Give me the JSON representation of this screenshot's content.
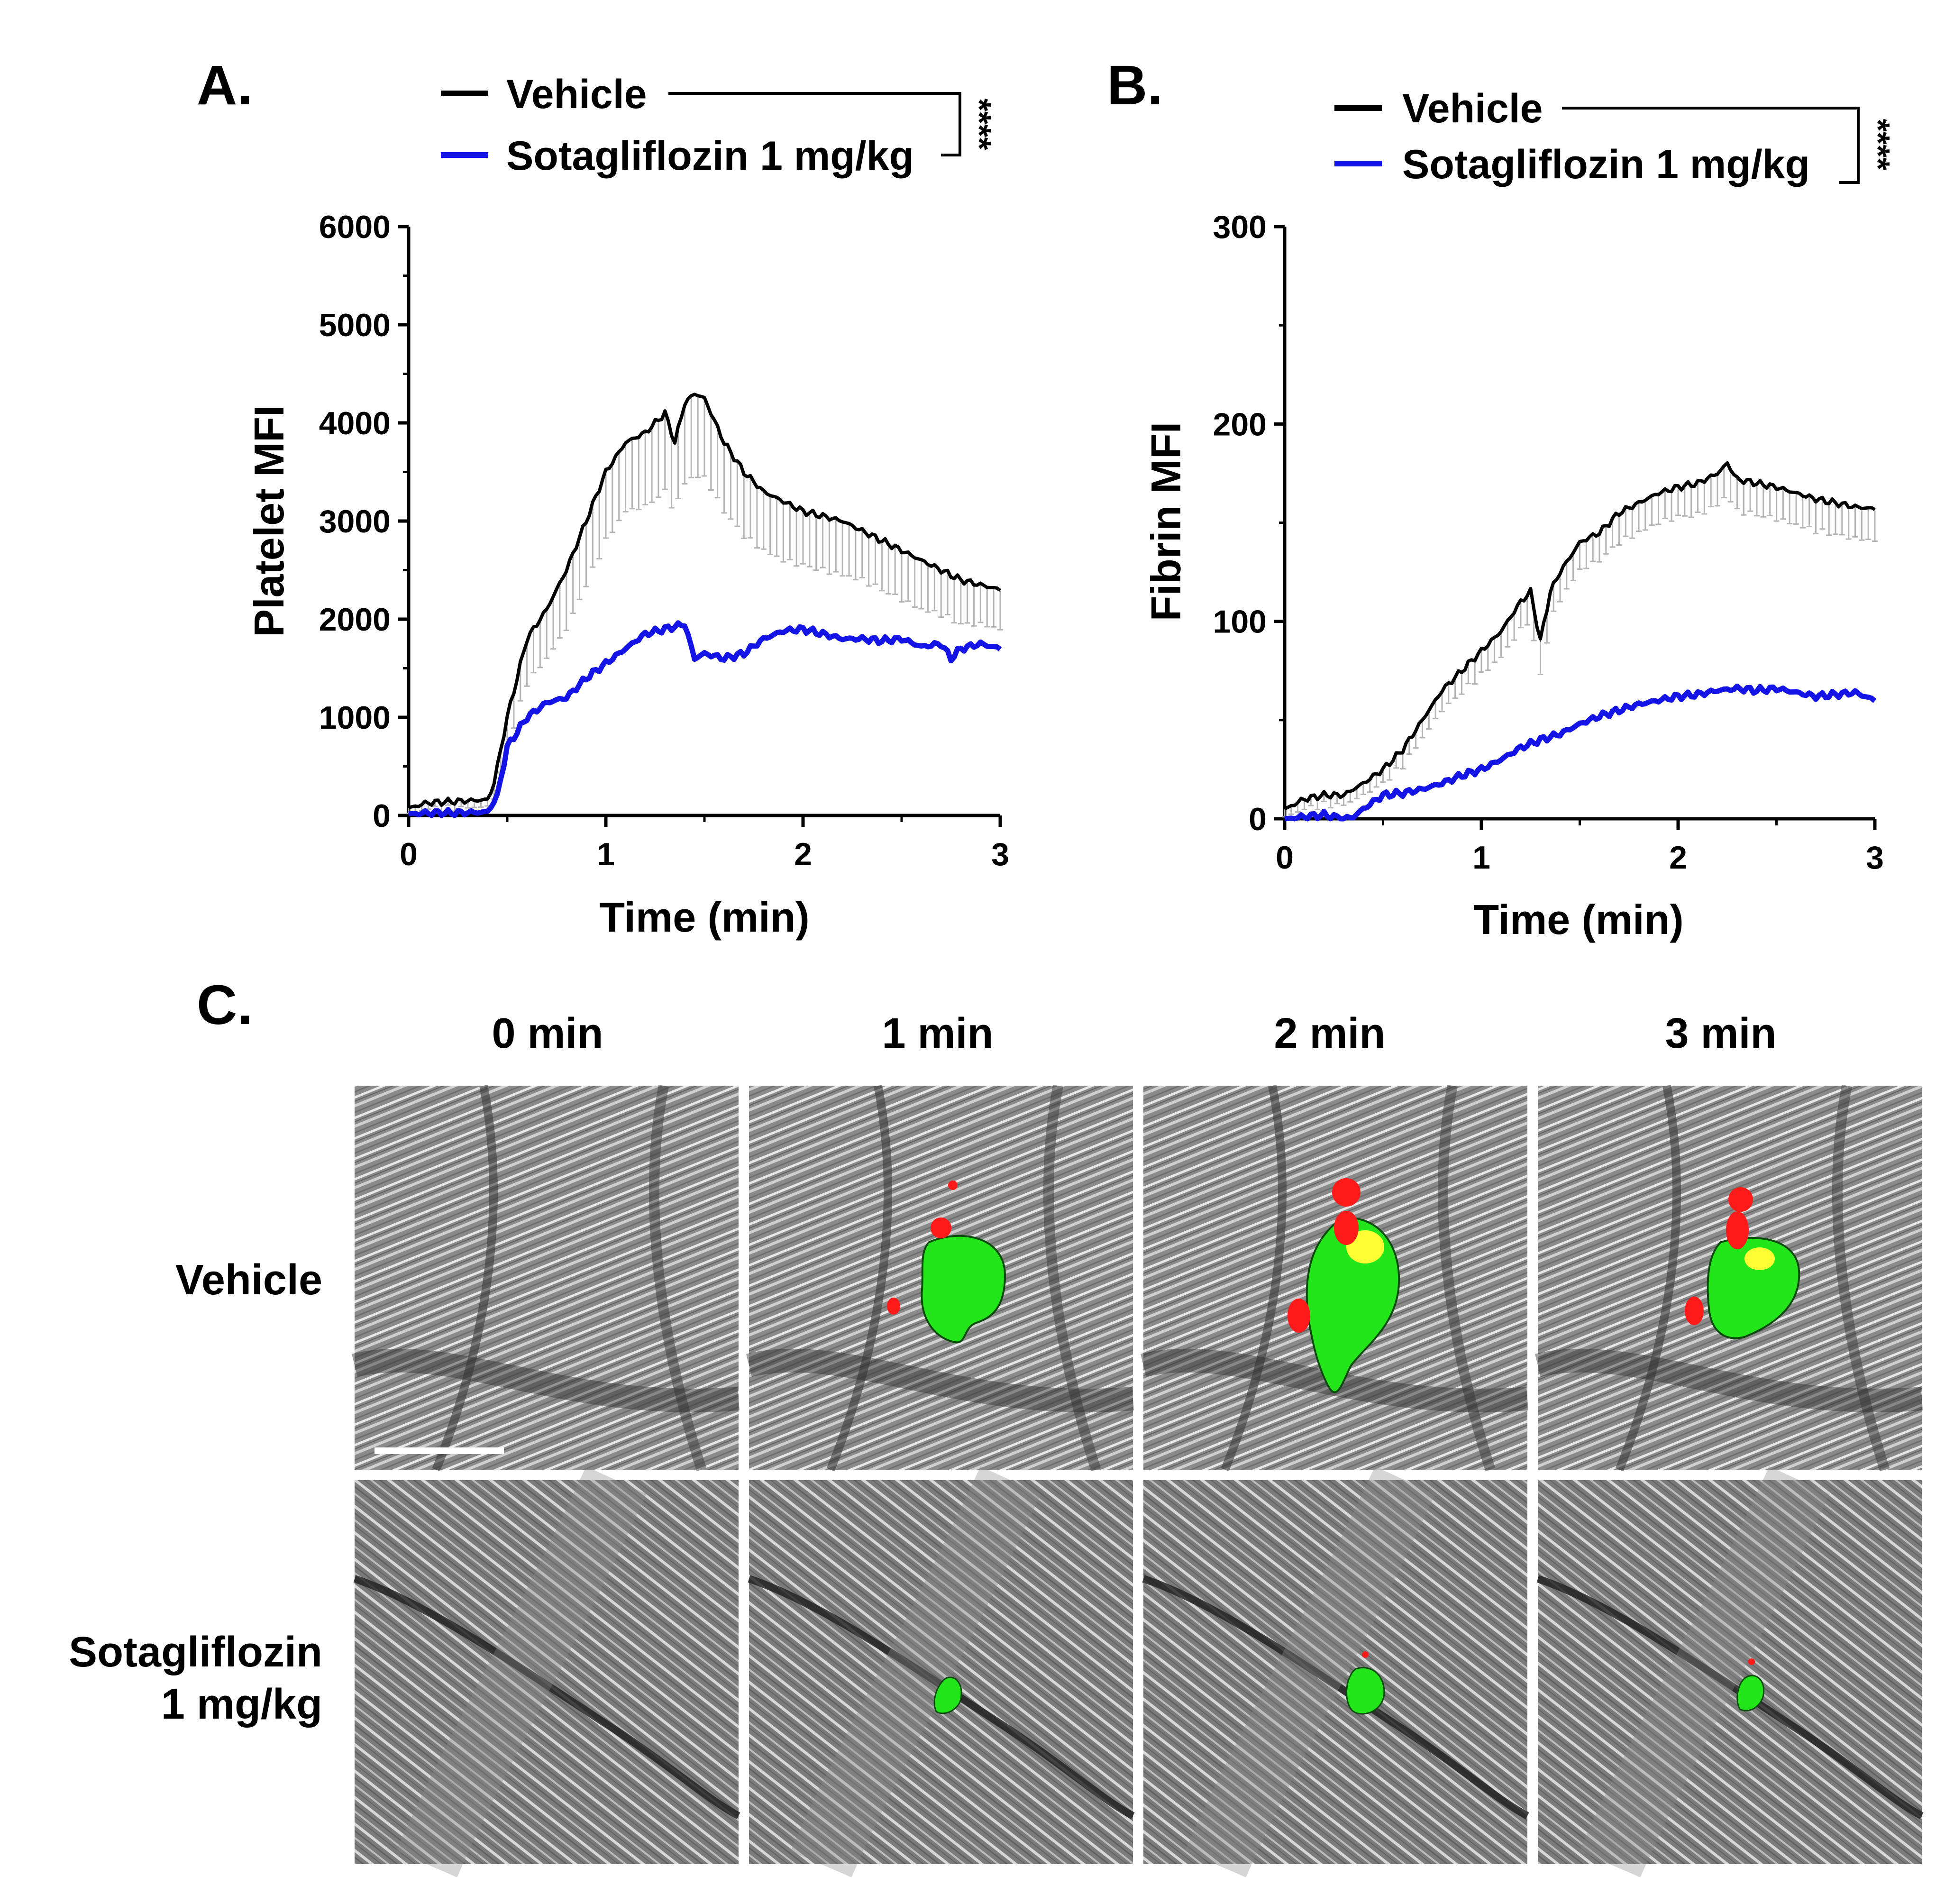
{
  "colors": {
    "vehicle": "#000000",
    "sotagliflozin": "#1414e6",
    "error_bar": "#b4b4b4",
    "platelet": "#ff1a1a",
    "fibrin": "#22e61a",
    "overlap": "#ffff33"
  },
  "panels": {
    "a": {
      "letter": "A.",
      "legend": [
        {
          "name": "Vehicle",
          "color": "#000000"
        },
        {
          "name": "Sotagliflozin 1 mg/kg",
          "color": "#1414e6"
        }
      ],
      "significance": "****"
    },
    "b": {
      "letter": "B.",
      "legend": [
        {
          "name": "Vehicle",
          "color": "#000000"
        },
        {
          "name": "Sotagliflozin 1 mg/kg",
          "color": "#1414e6"
        }
      ],
      "significance": "****"
    },
    "c": {
      "letter": "C.",
      "columns": [
        "0 min",
        "1 min",
        "2 min",
        "3 min"
      ],
      "rows": [
        {
          "label_lines": [
            "Vehicle"
          ]
        },
        {
          "label_lines": [
            "Sotagliflozin",
            "1 mg/kg"
          ]
        }
      ]
    }
  },
  "chart_data": [
    {
      "type": "line",
      "panel": "A",
      "title": "",
      "xlabel": "Time (min)",
      "ylabel": "Platelet MFI",
      "xlim": [
        0,
        3
      ],
      "ylim": [
        0,
        6000
      ],
      "xticks": [
        0,
        1,
        2,
        3
      ],
      "yticks": [
        0,
        1000,
        2000,
        3000,
        4000,
        5000,
        6000
      ],
      "series": [
        {
          "name": "Vehicle",
          "color": "#000000",
          "error_bars": "SEM (gray)",
          "x": [
            0,
            0.1,
            0.2,
            0.3,
            0.4,
            0.43,
            0.5,
            0.6,
            0.7,
            0.8,
            0.9,
            1.0,
            1.1,
            1.2,
            1.3,
            1.35,
            1.4,
            1.45,
            1.5,
            1.6,
            1.7,
            1.8,
            1.9,
            2.0,
            2.1,
            2.2,
            2.3,
            2.4,
            2.5,
            2.6,
            2.7,
            2.8,
            2.9,
            3.0
          ],
          "values": [
            80,
            130,
            140,
            150,
            160,
            300,
            1000,
            1800,
            2100,
            2500,
            3000,
            3500,
            3800,
            3900,
            4100,
            3800,
            4200,
            4300,
            4250,
            3800,
            3500,
            3300,
            3200,
            3100,
            3050,
            3000,
            2900,
            2800,
            2700,
            2600,
            2500,
            2400,
            2350,
            2300
          ],
          "errors": [
            60,
            60,
            70,
            70,
            70,
            150,
            300,
            450,
            500,
            600,
            650,
            700,
            700,
            750,
            800,
            700,
            800,
            850,
            800,
            700,
            650,
            600,
            600,
            550,
            550,
            550,
            500,
            500,
            500,
            500,
            450,
            450,
            400,
            400
          ]
        },
        {
          "name": "Sotagliflozin 1 mg/kg",
          "color": "#1414e6",
          "x": [
            0,
            0.1,
            0.2,
            0.3,
            0.4,
            0.45,
            0.5,
            0.6,
            0.7,
            0.8,
            0.9,
            1.0,
            1.1,
            1.2,
            1.3,
            1.4,
            1.45,
            1.5,
            1.6,
            1.7,
            1.8,
            1.9,
            2.0,
            2.1,
            2.2,
            2.3,
            2.4,
            2.5,
            2.6,
            2.7,
            2.75,
            2.8,
            2.9,
            3.0
          ],
          "values": [
            20,
            25,
            25,
            30,
            35,
            200,
            700,
            1000,
            1150,
            1200,
            1400,
            1550,
            1700,
            1850,
            1900,
            1950,
            1600,
            1650,
            1600,
            1650,
            1800,
            1880,
            1900,
            1850,
            1800,
            1800,
            1780,
            1800,
            1720,
            1750,
            1600,
            1700,
            1750,
            1700
          ]
        }
      ]
    },
    {
      "type": "line",
      "panel": "B",
      "title": "",
      "xlabel": "Time (min)",
      "ylabel": "Fibrin MFI",
      "xlim": [
        0,
        3
      ],
      "ylim": [
        0,
        300
      ],
      "xticks": [
        0,
        1,
        2,
        3
      ],
      "yticks": [
        0,
        100,
        200,
        300
      ],
      "series": [
        {
          "name": "Vehicle",
          "color": "#000000",
          "error_bars": "SEM (gray)",
          "x": [
            0,
            0.1,
            0.2,
            0.3,
            0.4,
            0.5,
            0.6,
            0.7,
            0.8,
            0.9,
            1.0,
            1.1,
            1.2,
            1.25,
            1.3,
            1.35,
            1.4,
            1.5,
            1.6,
            1.7,
            1.8,
            1.9,
            2.0,
            2.1,
            2.2,
            2.25,
            2.3,
            2.4,
            2.5,
            2.6,
            2.7,
            2.8,
            2.9,
            3.0
          ],
          "values": [
            5,
            10,
            12,
            12,
            18,
            25,
            35,
            50,
            65,
            75,
            85,
            95,
            110,
            115,
            90,
            115,
            125,
            140,
            145,
            155,
            160,
            165,
            168,
            170,
            175,
            180,
            172,
            170,
            168,
            165,
            162,
            160,
            158,
            157
          ],
          "errors": [
            4,
            5,
            5,
            5,
            6,
            7,
            8,
            9,
            10,
            11,
            12,
            13,
            14,
            15,
            18,
            15,
            14,
            14,
            14,
            15,
            15,
            15,
            15,
            16,
            16,
            16,
            16,
            16,
            16,
            16,
            16,
            16,
            16,
            16
          ]
        },
        {
          "name": "Sotagliflozin 1 mg/kg",
          "color": "#1414e6",
          "x": [
            0,
            0.1,
            0.2,
            0.3,
            0.35,
            0.4,
            0.5,
            0.6,
            0.7,
            0.8,
            0.9,
            1.0,
            1.1,
            1.2,
            1.3,
            1.4,
            1.5,
            1.6,
            1.7,
            1.8,
            1.9,
            2.0,
            2.1,
            2.2,
            2.3,
            2.4,
            2.5,
            2.6,
            2.7,
            2.8,
            2.9,
            3.0
          ],
          "values": [
            0,
            1,
            2,
            0,
            1,
            5,
            12,
            13,
            15,
            18,
            22,
            25,
            30,
            36,
            40,
            43,
            48,
            52,
            55,
            58,
            60,
            62,
            63,
            65,
            66,
            65,
            66,
            64,
            62,
            63,
            64,
            60
          ]
        }
      ]
    }
  ]
}
